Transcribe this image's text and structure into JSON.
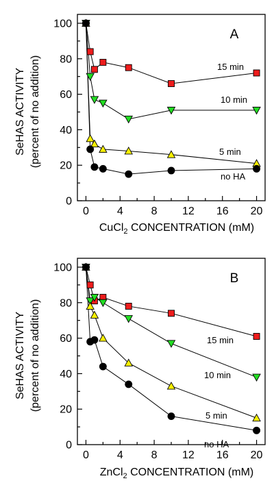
{
  "chart_data": [
    {
      "type": "line",
      "panel_label": "A",
      "xlabel_prefix": "CuCl",
      "xlabel_subscript": "2",
      "xlabel_suffix": " CONCENTRATION (mM)",
      "ylabel_line1": "SeHAS ACTIVITY",
      "ylabel_line2": "(percent of no addition)",
      "xlim": [
        -1,
        21
      ],
      "ylim": [
        0,
        105
      ],
      "xticks": [
        0,
        4,
        8,
        12,
        16,
        20
      ],
      "yticks": [
        0,
        20,
        40,
        60,
        80,
        100
      ],
      "x": [
        0,
        0.5,
        1,
        2,
        5,
        10,
        20
      ],
      "series": [
        {
          "name": "15 min",
          "marker": "square",
          "color": "#ee1c1c",
          "values": [
            100,
            84,
            74,
            78,
            75,
            66,
            72
          ]
        },
        {
          "name": "10 min",
          "marker": "triangle-down",
          "color": "#22dd22",
          "values": [
            100,
            70,
            57,
            55,
            46,
            51,
            51
          ]
        },
        {
          "name": "5 min",
          "marker": "triangle-up",
          "color": "#f8f000",
          "values": [
            100,
            35,
            32,
            29,
            28,
            26,
            21
          ]
        },
        {
          "name": "no HA",
          "marker": "circle",
          "color": "#000000",
          "values": [
            100,
            29,
            19,
            18,
            15,
            17,
            18
          ]
        }
      ]
    },
    {
      "type": "line",
      "panel_label": "B",
      "xlabel_prefix": "ZnCl",
      "xlabel_subscript": "2",
      "xlabel_suffix": " CONCENTRATION (mM)",
      "ylabel_line1": "SeHAS ACTIVITY",
      "ylabel_line2": "(percent of no addition)",
      "xlim": [
        -1,
        21
      ],
      "ylim": [
        0,
        105
      ],
      "xticks": [
        0,
        4,
        8,
        12,
        16,
        20
      ],
      "yticks": [
        0,
        20,
        40,
        60,
        80,
        100
      ],
      "x": [
        0,
        0.5,
        1,
        2,
        5,
        10,
        20
      ],
      "series": [
        {
          "name": "15 min",
          "marker": "square",
          "color": "#ee1c1c",
          "values": [
            100,
            90,
            81,
            83,
            78,
            74,
            61
          ]
        },
        {
          "name": "10 min",
          "marker": "triangle-down",
          "color": "#22dd22",
          "values": [
            100,
            81,
            83,
            80,
            71,
            57,
            38
          ]
        },
        {
          "name": "5 min",
          "marker": "triangle-up",
          "color": "#f8f000",
          "values": [
            100,
            78,
            73,
            60,
            46,
            33,
            15
          ]
        },
        {
          "name": "no HA",
          "marker": "circle",
          "color": "#000000",
          "values": [
            100,
            58,
            59,
            44,
            34,
            16,
            8
          ]
        }
      ]
    }
  ]
}
